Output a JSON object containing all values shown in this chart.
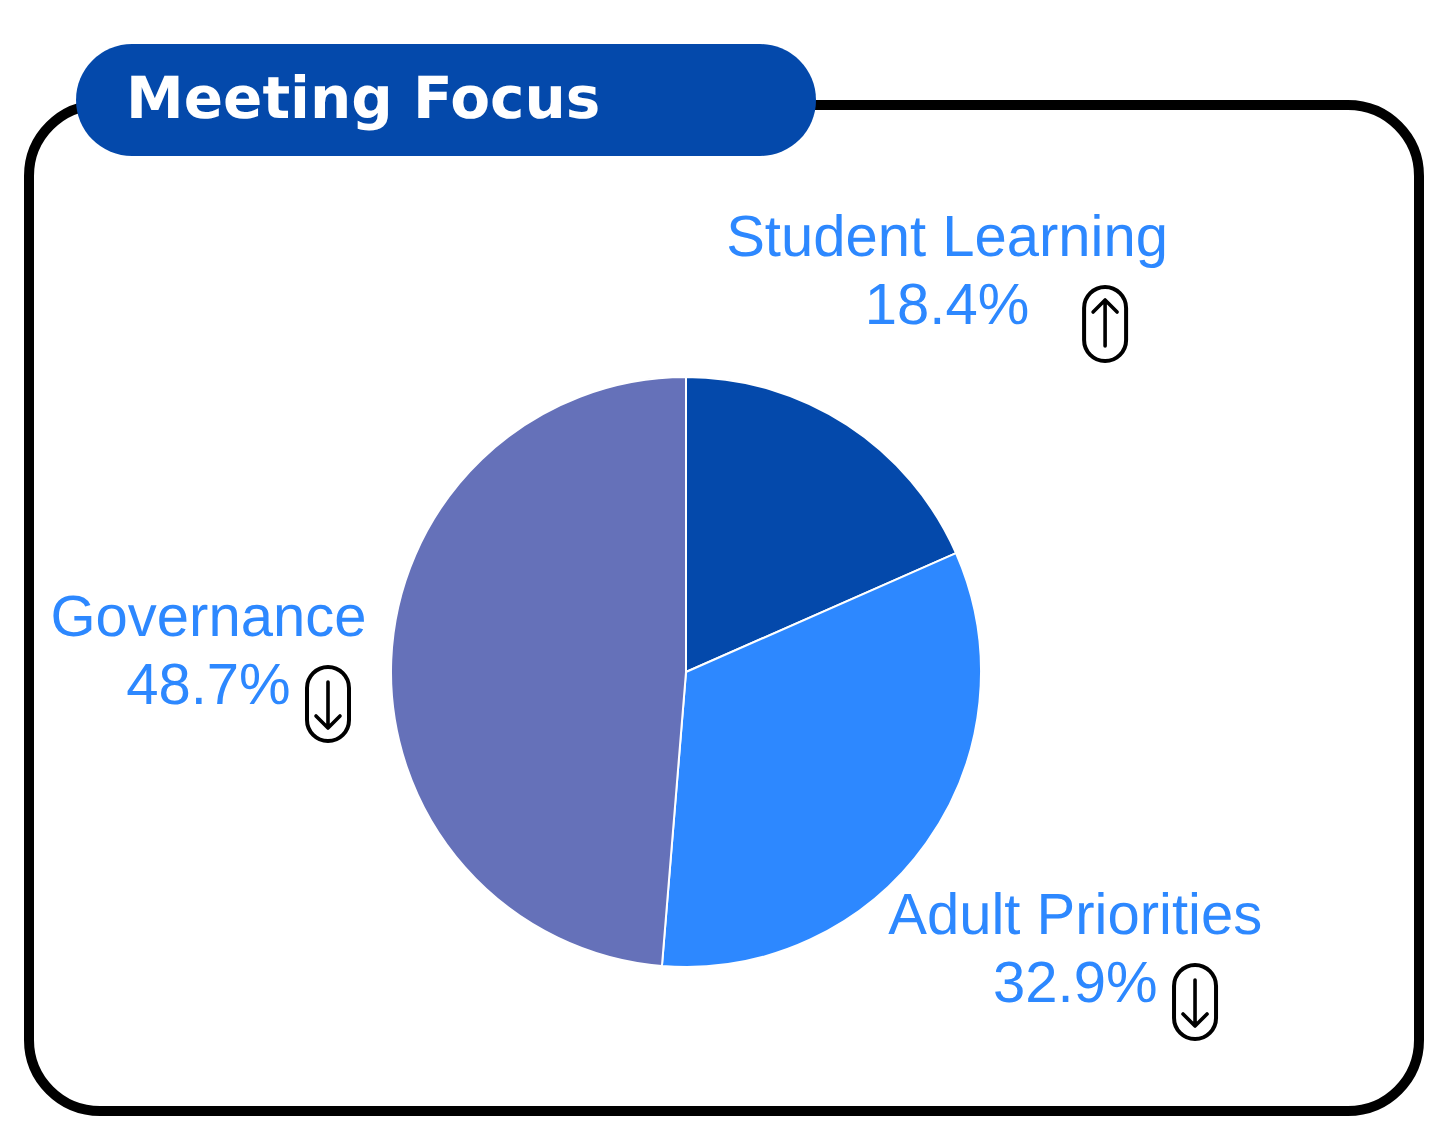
{
  "chart_data": {
    "type": "pie",
    "title": "Meeting Focus",
    "categories": [
      "Student Learning",
      "Adult Priorities",
      "Governance"
    ],
    "values": [
      18.4,
      32.9,
      48.7
    ],
    "colors": [
      "#0449ab",
      "#2d88ff",
      "#6571b9"
    ],
    "value_labels": [
      "18.4%",
      "32.9%",
      "48.7%"
    ]
  }
}
